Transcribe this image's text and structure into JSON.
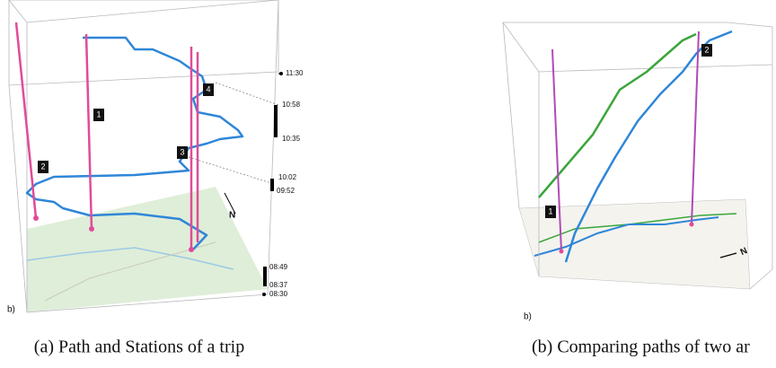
{
  "left": {
    "time_labels": [
      "11:30",
      "10:58",
      "10:35",
      "10:02",
      "09:52",
      "08:49",
      "08:37",
      "08:30"
    ],
    "station_labels": [
      "1",
      "2",
      "3",
      "4"
    ],
    "panel_label": "b)",
    "north": "N",
    "caption": "(a) Path and Stations of a trip"
  },
  "right": {
    "station_labels": [
      "1",
      "2"
    ],
    "panel_label": "b)",
    "north": "N",
    "caption": "(b) Comparing paths of two ar"
  }
}
